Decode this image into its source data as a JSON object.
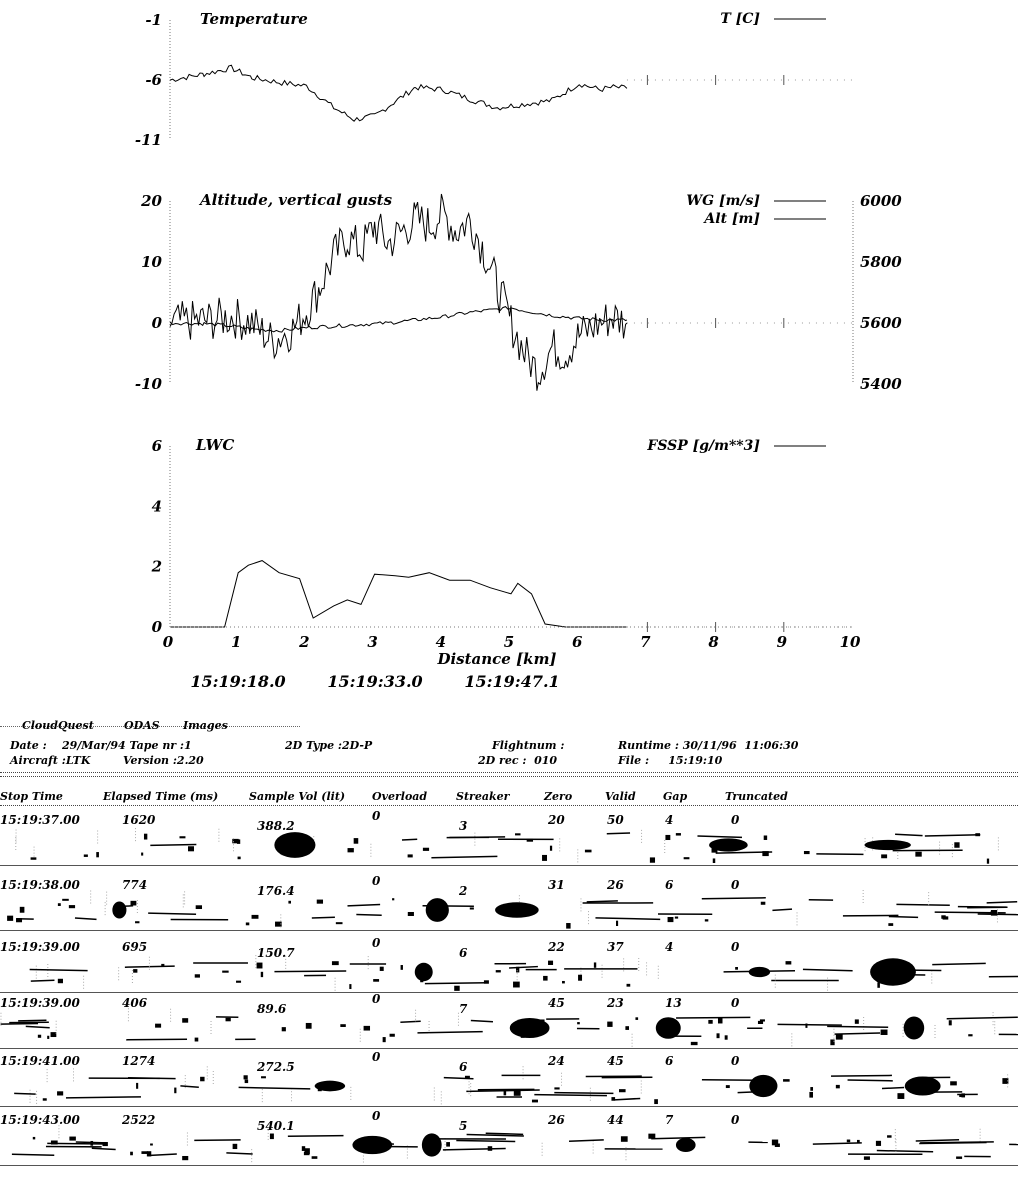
{
  "chart_data": [
    {
      "type": "line",
      "title": "Temperature",
      "ylim": [
        -11,
        -1
      ],
      "yticks": [
        "-1",
        "-6",
        "-11"
      ],
      "xlim": [
        0,
        10
      ],
      "series": [
        {
          "name": "T [C]",
          "x": [
            0,
            0.5,
            0.9,
            1.2,
            1.6,
            2.0,
            2.4,
            2.7,
            3.0,
            3.3,
            3.6,
            4.0,
            4.4,
            4.8,
            5.2,
            5.6,
            6.0,
            6.3,
            6.5,
            6.7
          ],
          "y": [
            -6.0,
            -5.5,
            -5.0,
            -5.8,
            -6.2,
            -6.5,
            -8.3,
            -9.3,
            -9.0,
            -7.8,
            -6.6,
            -6.8,
            -7.6,
            -8.3,
            -8.0,
            -7.7,
            -6.3,
            -6.8,
            -6.6,
            -6.7
          ]
        }
      ]
    },
    {
      "type": "line",
      "title": "Altitude, vertical gusts",
      "ylim": [
        -10,
        20
      ],
      "yticks": [
        "20",
        "10",
        "0",
        "-10"
      ],
      "y2lim": [
        5400,
        6000
      ],
      "y2ticks": [
        "6000",
        "5800",
        "5600",
        "5400"
      ],
      "xlim": [
        0,
        10
      ],
      "series": [
        {
          "name": "WG [m/s]",
          "x": [
            0,
            0.6,
            0.9,
            1.2,
            1.5,
            1.8,
            2.0,
            2.2,
            2.4,
            2.6,
            2.8,
            3.0,
            3.2,
            3.4,
            3.6,
            3.8,
            4.0,
            4.2,
            4.4,
            4.6,
            4.8,
            5.0,
            5.2,
            5.4,
            5.6,
            5.8,
            6.0,
            6.3,
            6.5,
            6.7
          ],
          "y": [
            0,
            0.5,
            1,
            0,
            -3,
            -1,
            2,
            6,
            11,
            14,
            12,
            16,
            13,
            15,
            17,
            16,
            18,
            15,
            17,
            12,
            6,
            0,
            -5,
            -8,
            -4,
            -5,
            -2,
            0,
            1,
            0
          ]
        },
        {
          "name": "Alt [m]",
          "x": [
            0,
            0.5,
            0.9,
            1.2,
            1.6,
            2.0,
            2.4,
            2.8,
            3.2,
            3.6,
            4.0,
            4.4,
            4.8,
            5.0,
            5.2,
            5.6,
            6.0,
            6.4,
            6.7
          ],
          "y": [
            5600,
            5598,
            5590,
            5580,
            5575,
            5585,
            5590,
            5595,
            5600,
            5610,
            5620,
            5635,
            5645,
            5650,
            5640,
            5625,
            5615,
            5610,
            5610
          ]
        }
      ],
      "legend": [
        "WG [m/s]",
        "Alt [m]"
      ]
    },
    {
      "type": "line",
      "title": "LWC",
      "ylim": [
        0,
        6
      ],
      "yticks": [
        "6",
        "4",
        "2",
        "0"
      ],
      "xlim": [
        0,
        10
      ],
      "xticks": [
        "0",
        "1",
        "2",
        "3",
        "4",
        "5",
        "6",
        "7",
        "8",
        "9",
        "10"
      ],
      "xlabel": "Distance [km]",
      "series": [
        {
          "name": "FSSP [g/m**3]",
          "x": [
            0,
            0.8,
            1.0,
            1.15,
            1.35,
            1.6,
            1.9,
            2.1,
            2.4,
            2.6,
            2.8,
            3.0,
            3.3,
            3.5,
            3.8,
            4.1,
            4.4,
            4.7,
            5.0,
            5.1,
            5.3,
            5.5,
            5.8,
            6.0,
            6.7
          ],
          "y": [
            0,
            0,
            1.8,
            2.05,
            2.2,
            1.8,
            1.6,
            0.3,
            0.7,
            0.9,
            0.75,
            1.75,
            1.7,
            1.65,
            1.8,
            1.55,
            1.55,
            1.3,
            1.1,
            1.45,
            1.1,
            0.1,
            0,
            0,
            0
          ]
        }
      ]
    }
  ],
  "time_labels": [
    "15:19:18.0",
    "15:19:33.0",
    "15:19:47.1"
  ],
  "header": {
    "title1": "CloudQuest",
    "title2": "ODAS",
    "title3": "Images",
    "date": "Date :    29/Mar/94 Tape nr :1",
    "aircraft": "Aircraft :LTK",
    "version": "Version :2.20",
    "type2d": "2D Type :2D-P",
    "flightnum": "Flightnum :",
    "rec2d": "2D rec :  010",
    "runtime": "Runtime : 30/11/96  11:06:30",
    "file": "File :     15:19:10"
  },
  "table": {
    "columns": [
      "Stop Time",
      "Elapsed Time (ms)",
      "Sample Vol (lit)",
      "Overload",
      "Streaker",
      "Zero",
      "Valid",
      "Gap",
      "Truncated"
    ],
    "rows": [
      [
        "15:19:37.00",
        "1620",
        "388.2",
        "0",
        "3",
        "20",
        "50",
        "4",
        "0"
      ],
      [
        "15:19:38.00",
        "774",
        "176.4",
        "0",
        "2",
        "31",
        "26",
        "6",
        "0"
      ],
      [
        "15:19:39.00",
        "695",
        "150.7",
        "0",
        "6",
        "22",
        "37",
        "4",
        "0"
      ],
      [
        "15:19:39.00",
        "406",
        "89.6",
        "0",
        "7",
        "45",
        "23",
        "13",
        "0"
      ],
      [
        "15:19:41.00",
        "1274",
        "272.5",
        "0",
        "6",
        "24",
        "45",
        "6",
        "0"
      ],
      [
        "15:19:43.00",
        "2522",
        "540.1",
        "0",
        "5",
        "26",
        "44",
        "7",
        "0"
      ]
    ]
  }
}
